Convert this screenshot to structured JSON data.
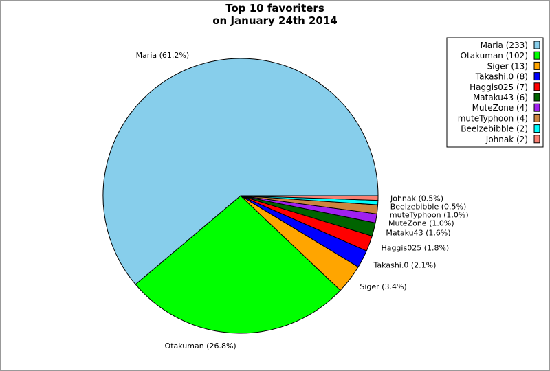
{
  "chart_data": {
    "type": "pie",
    "title_lines": [
      "Top 10 favoriters",
      "on January 24th 2014"
    ],
    "slices": [
      {
        "name": "Maria",
        "value": 233,
        "label": "Maria (61.2%)",
        "legend": "Maria (233)",
        "color": "#87ceeb"
      },
      {
        "name": "Otakuman",
        "value": 102,
        "label": "Otakuman (26.8%)",
        "legend": "Otakuman (102)",
        "color": "#00ff00"
      },
      {
        "name": "Siger",
        "value": 13,
        "label": "Siger (3.4%)",
        "legend": "Siger (13)",
        "color": "#ffa500"
      },
      {
        "name": "Takashi.0",
        "value": 8,
        "label": "Takashi.0 (2.1%)",
        "legend": "Takashi.0 (8)",
        "color": "#0000ff"
      },
      {
        "name": "Haggis025",
        "value": 7,
        "label": "Haggis025 (1.8%)",
        "legend": "Haggis025 (7)",
        "color": "#ff0000"
      },
      {
        "name": "Mataku43",
        "value": 6,
        "label": "Mataku43 (1.6%)",
        "legend": "Mataku43 (6)",
        "color": "#006400"
      },
      {
        "name": "MuteZone",
        "value": 4,
        "label": "MuteZone (1.0%)",
        "legend": "MuteZone (4)",
        "color": "#a020f0"
      },
      {
        "name": "muteTyphoon",
        "value": 4,
        "label": "muteTyphoon (1.0%)",
        "legend": "muteTyphoon (4)",
        "color": "#cd853f"
      },
      {
        "name": "Beelzebibble",
        "value": 2,
        "label": "Beelzebibble (0.5%)",
        "legend": "Beelzebibble (2)",
        "color": "#00ffff"
      },
      {
        "name": "Johnak",
        "value": 2,
        "label": "Johnak (0.5%)",
        "legend": "Johnak (2)",
        "color": "#fa8072"
      }
    ],
    "legend_position": "top-right"
  }
}
